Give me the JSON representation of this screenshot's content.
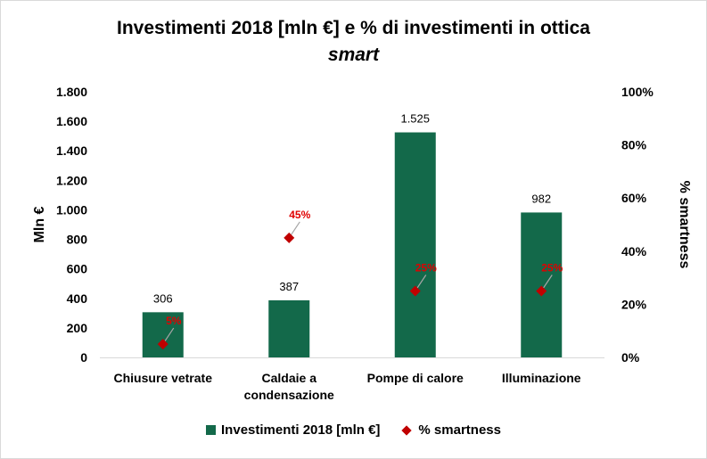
{
  "chart_data": {
    "type": "bar",
    "title": "Investimenti 2018 [mln €] e % di investimenti in ottica",
    "subtitle": "smart",
    "categories": [
      [
        "Chiusure vetrate"
      ],
      [
        "Caldaie a",
        "condensazione"
      ],
      [
        "Pompe di calore"
      ],
      [
        "Illuminazione"
      ]
    ],
    "series": [
      {
        "name": "Investimenti 2018 [mln €]",
        "axis": "primary",
        "type": "bar",
        "values": [
          306,
          387,
          1525,
          982
        ],
        "labels": [
          "306",
          "387",
          "1.525",
          "982"
        ],
        "color": "#13694a"
      },
      {
        "name": "% smartness",
        "axis": "secondary",
        "type": "scatter",
        "marker": "diamond",
        "values": [
          5,
          45,
          25,
          25
        ],
        "labels": [
          "5%",
          "45%",
          "25%",
          "25%"
        ],
        "color": "#c00000",
        "label_color": "#e00000"
      }
    ],
    "ylabel": "Mln €",
    "ylim": [
      0,
      1800
    ],
    "yticks": [
      0,
      200,
      400,
      600,
      800,
      1000,
      1200,
      1400,
      1600,
      1800
    ],
    "ytick_labels": [
      "0",
      "200",
      "400",
      "600",
      "800",
      "1.000",
      "1.200",
      "1.400",
      "1.600",
      "1.800"
    ],
    "y2label": "% smartness",
    "y2lim": [
      0,
      100
    ],
    "y2ticks": [
      0,
      20,
      40,
      60,
      80,
      100
    ],
    "y2tick_labels": [
      "0%",
      "20%",
      "40%",
      "60%",
      "80%",
      "100%"
    ],
    "grid": false,
    "legend_position": "bottom"
  }
}
